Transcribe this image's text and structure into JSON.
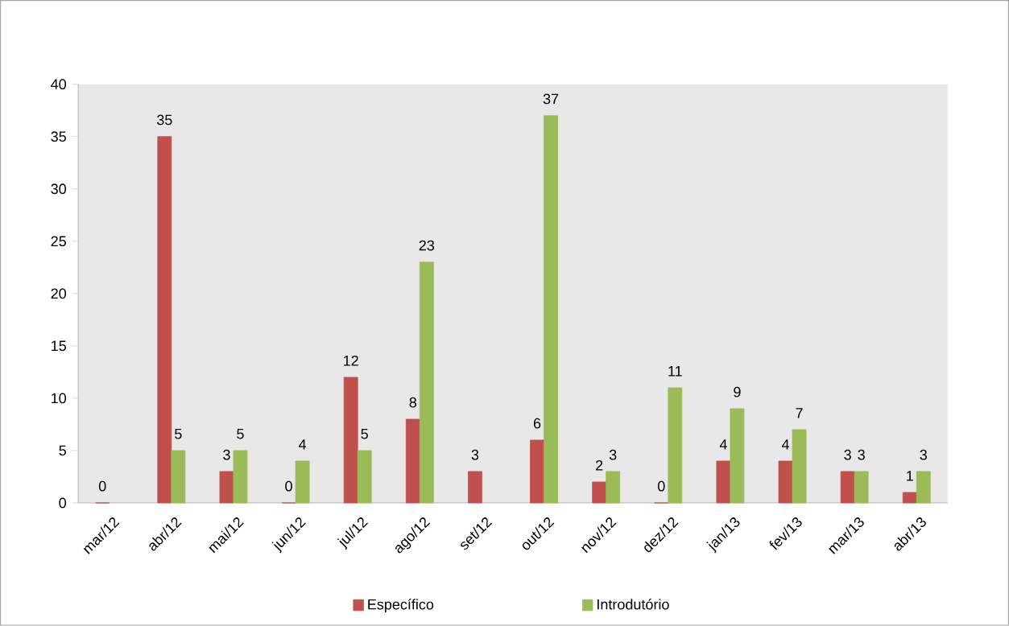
{
  "chart_data": {
    "type": "bar",
    "categories": [
      "mar/12",
      "abr/12",
      "mai/12",
      "jun/12",
      "jul/12",
      "ago/12",
      "set/12",
      "out/12",
      "nov/12",
      "dez/12",
      "jan/13",
      "fev/13",
      "mar/13",
      "abr/13"
    ],
    "series": [
      {
        "name": "Específico",
        "color": "#c0504d",
        "values": [
          0,
          35,
          3,
          0,
          12,
          8,
          3,
          6,
          2,
          0,
          4,
          4,
          3,
          1
        ]
      },
      {
        "name": "Introdutório",
        "color": "#9bbb59",
        "values": [
          null,
          5,
          5,
          4,
          5,
          23,
          null,
          37,
          3,
          11,
          9,
          7,
          3,
          3
        ]
      }
    ],
    "ylim": [
      0,
      40
    ],
    "yticks": [
      0,
      5,
      10,
      15,
      20,
      25,
      30,
      35,
      40
    ],
    "data_labels": true,
    "grid": false,
    "legend": "bottom"
  }
}
